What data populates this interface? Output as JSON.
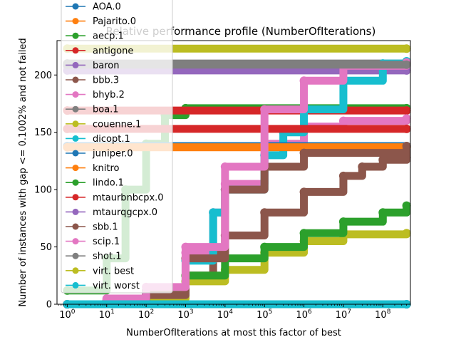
{
  "chart_data": {
    "type": "line",
    "title": "Relative performance profile (NumberOfIterations)",
    "xlabel": "NumberOfIterations at most this factor of best",
    "ylabel": "Number of instances with gap <= 0.1002% and not failed",
    "xscale": "log",
    "xlim": [
      0.55,
      500000000
    ],
    "ylim": [
      0,
      230
    ],
    "x_ticks": [
      {
        "value": 1,
        "base": "10",
        "exp": "0"
      },
      {
        "value": 10,
        "base": "10",
        "exp": "1"
      },
      {
        "value": 100,
        "base": "10",
        "exp": "2"
      },
      {
        "value": 1000,
        "base": "10",
        "exp": "3"
      },
      {
        "value": 10000,
        "base": "10",
        "exp": "4"
      },
      {
        "value": 100000,
        "base": "10",
        "exp": "5"
      },
      {
        "value": 1000000,
        "base": "10",
        "exp": "6"
      },
      {
        "value": 10000000,
        "base": "10",
        "exp": "7"
      },
      {
        "value": 100000000,
        "base": "10",
        "exp": "8"
      }
    ],
    "y_ticks": [
      "0",
      "50",
      "100",
      "150",
      "200"
    ],
    "y_tick_values": [
      0,
      50,
      100,
      150,
      200
    ],
    "legend_position": "upper-left",
    "grid": false,
    "series": [
      {
        "name": "AOA.0",
        "color": "#1f77b4",
        "points": [
          [
            1,
            0
          ],
          [
            400000000,
            0
          ]
        ]
      },
      {
        "name": "Pajarito.0",
        "color": "#ff7f0e",
        "points": [
          [
            1,
            137
          ],
          [
            400000000,
            137
          ]
        ]
      },
      {
        "name": "aecp.1",
        "color": "#2ca02c",
        "points": [
          [
            1,
            12
          ],
          [
            10,
            40
          ],
          [
            30,
            100
          ],
          [
            100,
            140
          ],
          [
            300,
            165
          ],
          [
            1000,
            171
          ],
          [
            400000000,
            171
          ]
        ]
      },
      {
        "name": "antigone",
        "color": "#d62728",
        "points": [
          [
            1,
            169
          ],
          [
            400000000,
            169
          ]
        ]
      },
      {
        "name": "baron",
        "color": "#9467bd",
        "points": [
          [
            1,
            204
          ],
          [
            400000000,
            204
          ]
        ]
      },
      {
        "name": "bbb.3",
        "color": "#8c564b",
        "points": [
          [
            1,
            0
          ],
          [
            10,
            3
          ],
          [
            100,
            8
          ],
          [
            1000,
            25
          ],
          [
            5000,
            45
          ],
          [
            10000,
            60
          ],
          [
            100000,
            80
          ],
          [
            1000000,
            98
          ],
          [
            10000000,
            112
          ],
          [
            30000000,
            120
          ],
          [
            100000000,
            126
          ],
          [
            400000000,
            128
          ]
        ]
      },
      {
        "name": "bhyb.2",
        "color": "#e377c2",
        "points": [
          [
            1,
            0
          ],
          [
            10,
            4
          ],
          [
            100,
            12
          ],
          [
            1000,
            45
          ],
          [
            5000,
            80
          ],
          [
            10000,
            105
          ],
          [
            100000,
            140
          ],
          [
            1000000,
            155
          ],
          [
            10000000,
            160
          ],
          [
            400000000,
            162
          ]
        ]
      },
      {
        "name": "boa.1",
        "color": "#7f7f7f",
        "points": [
          [
            1,
            210
          ],
          [
            400000000,
            210
          ]
        ]
      },
      {
        "name": "couenne.1",
        "color": "#bcbd22",
        "points": [
          [
            1,
            0
          ],
          [
            100,
            5
          ],
          [
            1000,
            20
          ],
          [
            10000,
            30
          ],
          [
            100000,
            45
          ],
          [
            1000000,
            55
          ],
          [
            10000000,
            61
          ],
          [
            400000000,
            62
          ]
        ]
      },
      {
        "name": "dicopt.1",
        "color": "#17becf",
        "points": [
          [
            1,
            0
          ],
          [
            100,
            10
          ],
          [
            1000,
            38
          ],
          [
            5000,
            80
          ],
          [
            10000,
            100
          ],
          [
            100000,
            130
          ],
          [
            300000,
            150
          ],
          [
            1000000,
            170
          ],
          [
            10000000,
            195
          ],
          [
            100000000,
            210
          ],
          [
            400000000,
            212
          ]
        ]
      },
      {
        "name": "juniper.0",
        "color": "#1f77b4",
        "points": [
          [
            1,
            138
          ],
          [
            400000000,
            138
          ]
        ]
      },
      {
        "name": "knitro",
        "color": "#ff7f0e",
        "points": [
          [
            1,
            137
          ],
          [
            400000000,
            137
          ]
        ]
      },
      {
        "name": "lindo.1",
        "color": "#2ca02c",
        "points": [
          [
            1,
            0
          ],
          [
            10,
            3
          ],
          [
            100,
            12
          ],
          [
            1000,
            25
          ],
          [
            10000,
            40
          ],
          [
            100000,
            50
          ],
          [
            1000000,
            62
          ],
          [
            10000000,
            72
          ],
          [
            100000000,
            80
          ],
          [
            400000000,
            86
          ]
        ]
      },
      {
        "name": "mtaurbnbcpx.0",
        "color": "#d62728",
        "points": [
          [
            1,
            153
          ],
          [
            400000000,
            153
          ]
        ]
      },
      {
        "name": "mtaurqgcpx.0",
        "color": "#9467bd",
        "points": [
          [
            1,
            208
          ],
          [
            400000000,
            208
          ]
        ]
      },
      {
        "name": "sbb.1",
        "color": "#8c564b",
        "points": [
          [
            1,
            0
          ],
          [
            100,
            8
          ],
          [
            1000,
            40
          ],
          [
            10000,
            100
          ],
          [
            100000,
            120
          ],
          [
            1000000,
            132
          ],
          [
            400000000,
            138
          ]
        ]
      },
      {
        "name": "scip.1",
        "color": "#e377c2",
        "points": [
          [
            1,
            0
          ],
          [
            10,
            5
          ],
          [
            100,
            15
          ],
          [
            1000,
            50
          ],
          [
            10000,
            120
          ],
          [
            100000,
            170
          ],
          [
            1000000,
            195
          ],
          [
            10000000,
            208
          ],
          [
            400000000,
            211
          ]
        ]
      },
      {
        "name": "shot.1",
        "color": "#7f7f7f",
        "points": [
          [
            1,
            209
          ],
          [
            400000000,
            209
          ]
        ]
      },
      {
        "name": "virt. best",
        "color": "#bcbd22",
        "points": [
          [
            1,
            223
          ],
          [
            400000000,
            223
          ]
        ]
      },
      {
        "name": "virt. worst",
        "color": "#17becf",
        "points": [
          [
            1,
            0
          ],
          [
            400000000,
            0
          ]
        ]
      }
    ]
  }
}
